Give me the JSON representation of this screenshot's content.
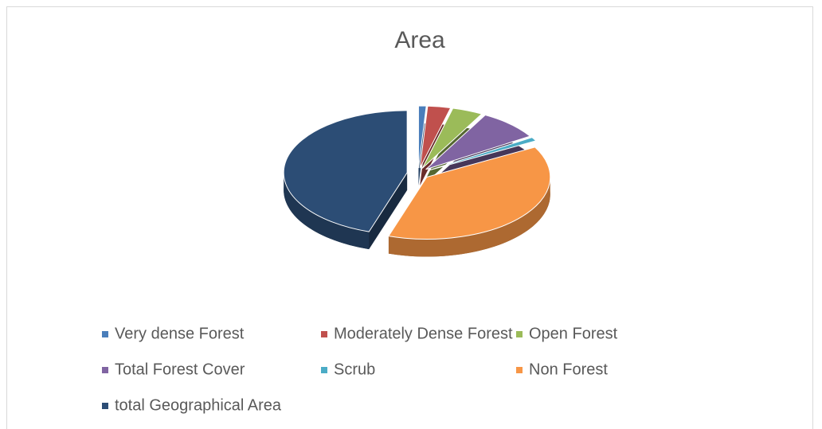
{
  "chart_data": {
    "type": "pie3d",
    "title": "Area",
    "categories": [
      "Very dense Forest",
      "Moderately Dense Forest",
      "Open Forest",
      "Total Forest Cover",
      "Scrub",
      "Non Forest",
      "total Geographical Area"
    ],
    "values": [
      1,
      3,
      4,
      8,
      1,
      38,
      45
    ],
    "colors": [
      "#4a7ebb",
      "#c0504d",
      "#9bbb59",
      "#8064a2",
      "#4bacc6",
      "#f79646",
      "#2c4d75"
    ],
    "legend": "bottom"
  }
}
